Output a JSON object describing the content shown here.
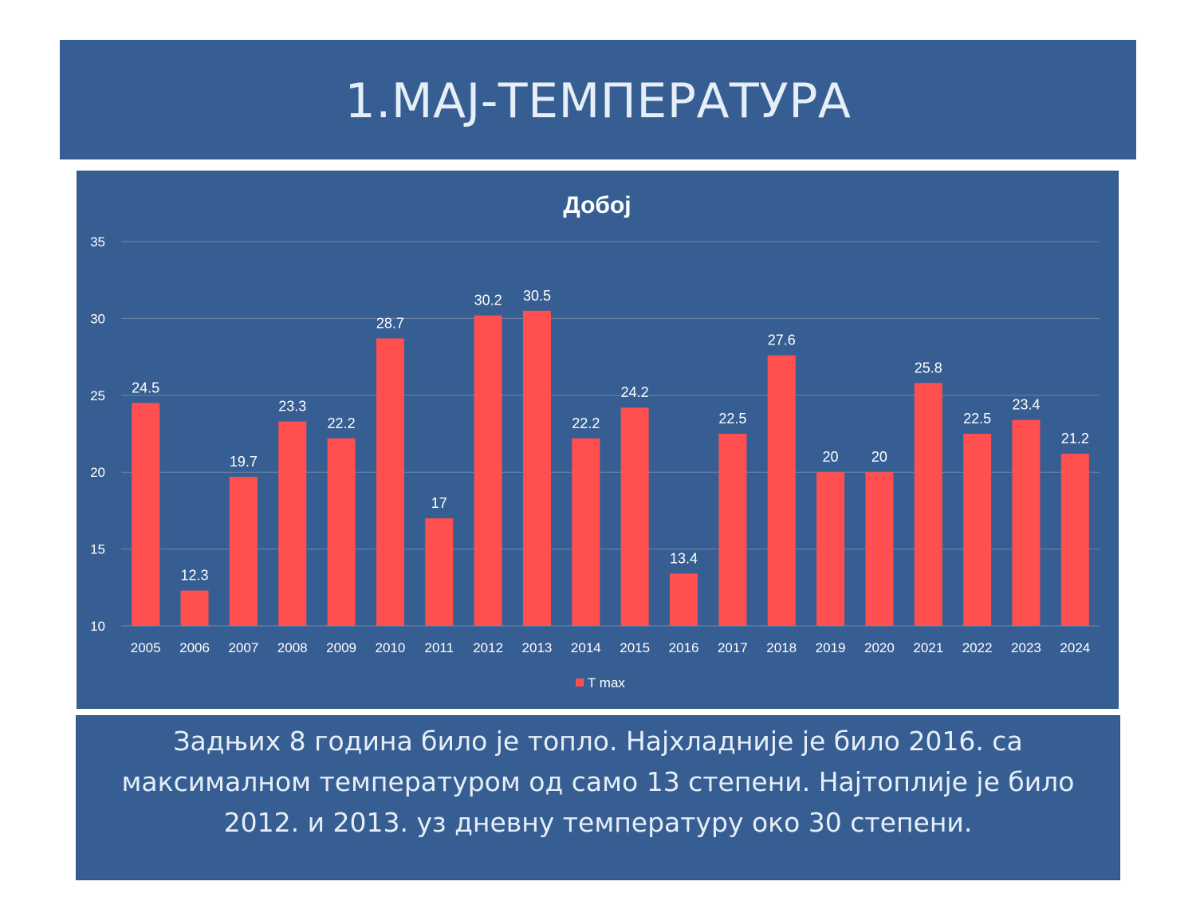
{
  "slide": {
    "title": "1.МАЈ-ТЕМПЕРАТУРА",
    "caption": "Задњих 8 година било је топло. Најхладније је било 2016. са максималном температуром од само 13 степени. Најтоплије је било 2012. и 2013. уз дневну температуру око 30 степени."
  },
  "colors": {
    "background": "#375E92",
    "bar": "#FF4F4F",
    "text": "#FFFFFF",
    "gridline": "#6F88A8"
  },
  "chart_data": {
    "type": "bar",
    "title": "Добој",
    "categories": [
      "2005",
      "2006",
      "2007",
      "2008",
      "2009",
      "2010",
      "2011",
      "2012",
      "2013",
      "2014",
      "2015",
      "2016",
      "2017",
      "2018",
      "2019",
      "2020",
      "2021",
      "2022",
      "2023",
      "2024"
    ],
    "series": [
      {
        "name": "T max",
        "values": [
          24.5,
          12.3,
          19.7,
          23.3,
          22.2,
          28.7,
          17,
          30.2,
          30.5,
          22.2,
          24.2,
          13.4,
          22.5,
          27.6,
          20,
          20,
          25.8,
          22.5,
          23.4,
          21.2
        ]
      }
    ],
    "ylim": [
      10,
      35
    ],
    "yticks": [
      10,
      15,
      20,
      25,
      30,
      35
    ],
    "grid": true,
    "legend": "bottom",
    "data_labels": true
  }
}
